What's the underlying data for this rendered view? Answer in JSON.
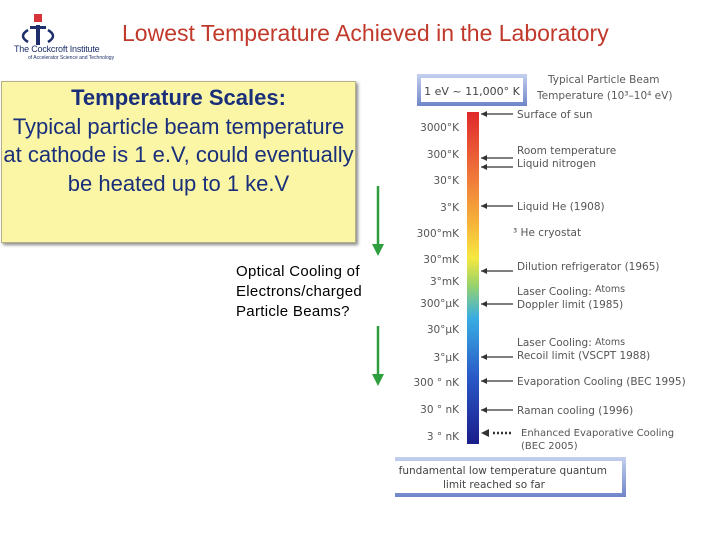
{
  "header": {
    "logo_text": "The Cockcroft Institute",
    "logo_sub": "of Accelerator Science and Technology",
    "title": "Lowest Temperature Achieved in the Laboratory"
  },
  "scales_box": {
    "heading": "Temperature Scales:",
    "body": "Typical particle beam temperature at cathode is 1 e.V, could eventually be heated up to 1 ke.V"
  },
  "optical_cooling": "Optical Cooling of Electrons/charged Particle Beams?",
  "figure": {
    "ev_box": "1 eV ~ 11,000° K",
    "beam_title": "Typical Particle Beam",
    "beam_temp": "Temperature (10³–10⁴ eV)",
    "scale_labels": [
      "3000°K",
      "300°K",
      "30°K",
      "3°K",
      "300°mK",
      "30°mK",
      "3°mK",
      "300°μK",
      "30°μK",
      "3°μK",
      "300 ° nK",
      "30 ° nK",
      "3 ° nK"
    ],
    "events": [
      {
        "label": "Surface of sun"
      },
      {
        "label": "Room temperature"
      },
      {
        "label": "Liquid nitrogen"
      },
      {
        "label": "Liquid He (1908)"
      },
      {
        "label": "³ He cryostat"
      },
      {
        "label": "Dilution refrigerator (1965)"
      },
      {
        "label": "Laser Cooling:",
        "tag": "Atoms"
      },
      {
        "label": "Doppler limit (1985)"
      },
      {
        "label": "Laser Cooling:",
        "tag": "Atoms"
      },
      {
        "label": "Recoil limit (VSCPT 1988)"
      },
      {
        "label": "Evaporation Cooling (BEC 1995)"
      },
      {
        "label": "Raman cooling (1996)"
      }
    ],
    "enhanced": [
      "Enhanced Evaporative Cooling",
      "(BEC 2005)"
    ],
    "footer_box": [
      "No fundamental low temperature quantum",
      "limit reached so far"
    ]
  },
  "colors": {
    "title": "#c0392b",
    "box_bg": "#fbf6a6",
    "box_text": "#1a2f7a",
    "green_arrow": "#2e9e3e",
    "label_gray": "#5a5a5a"
  }
}
